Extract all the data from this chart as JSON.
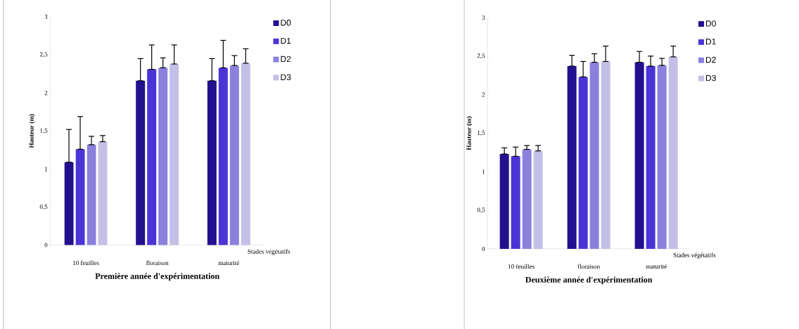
{
  "chart_data": [
    {
      "type": "bar",
      "title": "**Première  année d'expérimentation**",
      "xlabel": "Stades végétatifs",
      "ylabel": "Hauteur (m)",
      "categories": [
        "10 feuilles",
        "floraison",
        "maturité"
      ],
      "ylim": [
        0,
        3
      ],
      "yticks": [
        0,
        {
          "value": 0.5,
          "label": "0,5"
        },
        1,
        {
          "value": 1.5,
          "label": "1,5"
        },
        2,
        {
          "value": 2.5,
          "label": "2,5"
        },
        3
      ],
      "legend": "top right",
      "series": [
        {
          "name": "D0",
          "color": "#22108f",
          "values": [
            1.09,
            2.16,
            2.16
          ],
          "errors": [
            [
              1.09,
              1.52
            ],
            [
              2.16,
              2.45
            ],
            [
              2.16,
              2.45
            ]
          ]
        },
        {
          "name": "D1",
          "color": "#4a34d6",
          "values": [
            1.26,
            2.31,
            2.33
          ],
          "errors": [
            [
              1.26,
              1.69
            ],
            [
              2.31,
              2.63
            ],
            [
              2.33,
              2.69
            ]
          ]
        },
        {
          "name": "D2",
          "color": "#8b80dc",
          "values": [
            1.32,
            2.33,
            2.36
          ],
          "errors": [
            [
              1.32,
              1.43
            ],
            [
              2.33,
              2.46
            ],
            [
              2.36,
              2.49
            ]
          ]
        },
        {
          "name": "D3",
          "color": "#c3bfe6",
          "values": [
            1.36,
            2.38,
            2.39
          ],
          "errors": [
            [
              1.36,
              1.44
            ],
            [
              2.38,
              2.63
            ],
            [
              2.39,
              2.58
            ]
          ]
        }
      ]
    },
    {
      "type": "bar",
      "title": "**Deuxième année d'expérimentation**",
      "xlabel": "Stades végétatifs",
      "ylabel": "Hauteur (m)",
      "categories": [
        "10 feuilles",
        "floraison",
        "maturité"
      ],
      "ylim": [
        0,
        3
      ],
      "yticks": [
        0,
        {
          "value": 0.5,
          "label": "0,5"
        },
        1,
        {
          "value": 1.5,
          "label": "1,5"
        },
        2,
        {
          "value": 2.5,
          "label": "2,5"
        },
        3
      ],
      "legend": "top right",
      "series": [
        {
          "name": "D0",
          "color": "#22108f",
          "values": [
            1.23,
            2.37,
            2.42
          ],
          "errors": [
            [
              1.23,
              1.31
            ],
            [
              2.37,
              2.51
            ],
            [
              2.42,
              2.56
            ]
          ]
        },
        {
          "name": "D1",
          "color": "#4a34d6",
          "values": [
            1.2,
            2.23,
            2.37
          ],
          "errors": [
            [
              1.2,
              1.32
            ],
            [
              2.23,
              2.43
            ],
            [
              2.37,
              2.5
            ]
          ]
        },
        {
          "name": "D2",
          "color": "#8b80dc",
          "values": [
            1.29,
            2.42,
            2.38
          ],
          "errors": [
            [
              1.29,
              1.34
            ],
            [
              2.42,
              2.53
            ],
            [
              2.38,
              2.47
            ]
          ]
        },
        {
          "name": "D3",
          "color": "#c3bfe6",
          "values": [
            1.27,
            2.43,
            2.49
          ],
          "errors": [
            [
              1.27,
              1.34
            ],
            [
              2.43,
              2.63
            ],
            [
              2.49,
              2.63
            ]
          ]
        }
      ]
    }
  ]
}
